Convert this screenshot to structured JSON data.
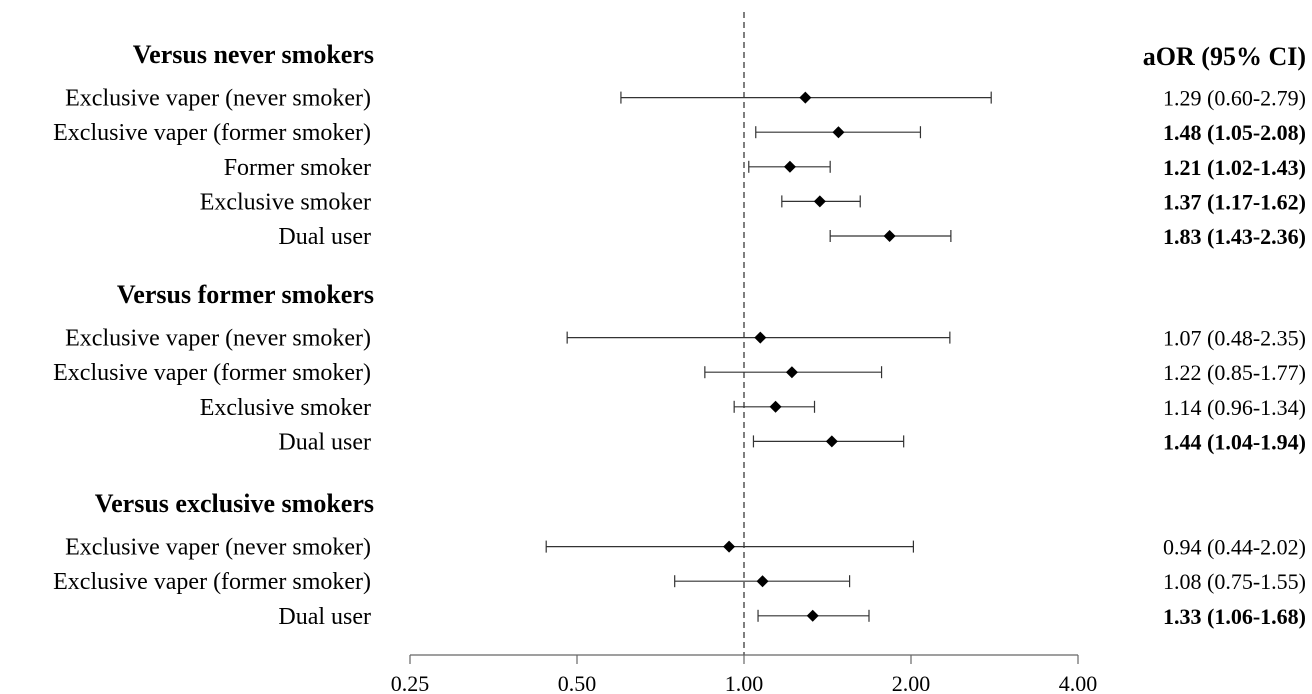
{
  "chart_data": {
    "type": "forest",
    "scale": "log2",
    "xlim": [
      0.25,
      4.0
    ],
    "x_ticks": [
      "0.25",
      "0.50",
      "1.00",
      "2.00",
      "4.00"
    ],
    "x_tick_values": [
      0.25,
      0.5,
      1.0,
      2.0,
      4.0
    ],
    "reference_line": 1.0,
    "estimate_header": "aOR (95% CI)",
    "groups": [
      {
        "title": "Versus never smokers",
        "rows": [
          {
            "label": "Exclusive vaper (never smoker)",
            "aor": 1.29,
            "lo": 0.6,
            "hi": 2.79,
            "text": "1.29 (0.60-2.79)",
            "significant": false
          },
          {
            "label": "Exclusive vaper (former smoker)",
            "aor": 1.48,
            "lo": 1.05,
            "hi": 2.08,
            "text": "1.48 (1.05-2.08)",
            "significant": true
          },
          {
            "label": "Former smoker",
            "aor": 1.21,
            "lo": 1.02,
            "hi": 1.43,
            "text": "1.21 (1.02-1.43)",
            "significant": true
          },
          {
            "label": "Exclusive smoker",
            "aor": 1.37,
            "lo": 1.17,
            "hi": 1.62,
            "text": "1.37 (1.17-1.62)",
            "significant": true
          },
          {
            "label": "Dual user",
            "aor": 1.83,
            "lo": 1.43,
            "hi": 2.36,
            "text": "1.83 (1.43-2.36)",
            "significant": true
          }
        ]
      },
      {
        "title": "Versus former smokers",
        "rows": [
          {
            "label": "Exclusive vaper (never smoker)",
            "aor": 1.07,
            "lo": 0.48,
            "hi": 2.35,
            "text": "1.07 (0.48-2.35)",
            "significant": false
          },
          {
            "label": "Exclusive vaper (former smoker)",
            "aor": 1.22,
            "lo": 0.85,
            "hi": 1.77,
            "text": "1.22 (0.85-1.77)",
            "significant": false
          },
          {
            "label": "Exclusive smoker",
            "aor": 1.14,
            "lo": 0.96,
            "hi": 1.34,
            "text": "1.14 (0.96-1.34)",
            "significant": false
          },
          {
            "label": "Dual user",
            "aor": 1.44,
            "lo": 1.04,
            "hi": 1.94,
            "text": "1.44 (1.04-1.94)",
            "significant": true
          }
        ]
      },
      {
        "title": "Versus exclusive smokers",
        "rows": [
          {
            "label": "Exclusive vaper (never smoker)",
            "aor": 0.94,
            "lo": 0.44,
            "hi": 2.02,
            "text": "0.94 (0.44-2.02)",
            "significant": false
          },
          {
            "label": "Exclusive vaper (former smoker)",
            "aor": 1.08,
            "lo": 0.75,
            "hi": 1.55,
            "text": "1.08 (0.75-1.55)",
            "significant": false
          },
          {
            "label": "Dual user",
            "aor": 1.33,
            "lo": 1.06,
            "hi": 1.68,
            "text": "1.33 (1.06-1.68)",
            "significant": true
          }
        ]
      }
    ]
  }
}
